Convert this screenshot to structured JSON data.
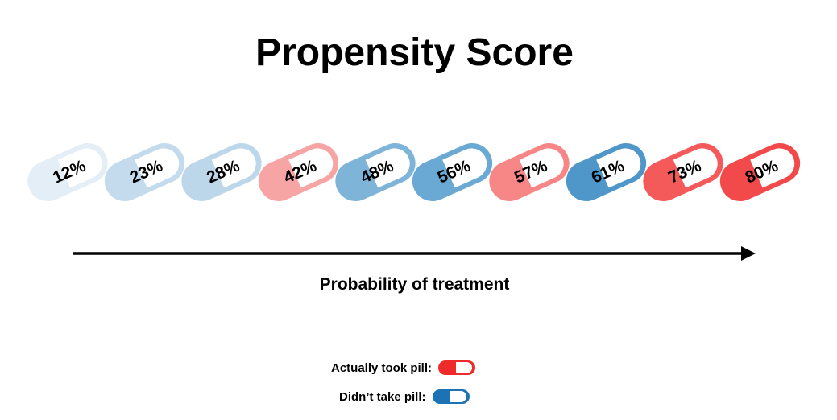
{
  "title": "Propensity Score",
  "axis_label": "Probability of treatment",
  "pills": [
    {
      "label": "12%",
      "color": "#e3eef6"
    },
    {
      "label": "23%",
      "color": "#c3dbec"
    },
    {
      "label": "28%",
      "color": "#bcd6ea"
    },
    {
      "label": "42%",
      "color": "#f7a4a4"
    },
    {
      "label": "48%",
      "color": "#7fb4d9"
    },
    {
      "label": "56%",
      "color": "#6aa9d4"
    },
    {
      "label": "57%",
      "color": "#f78686"
    },
    {
      "label": "61%",
      "color": "#4f97c8"
    },
    {
      "label": "73%",
      "color": "#f55a5a"
    },
    {
      "label": "80%",
      "color": "#f24a4a"
    }
  ],
  "legend": [
    {
      "label": "Actually took pill:",
      "color": "#ee2b2b"
    },
    {
      "label": "Didn’t take pill:",
      "color": "#1b72b4"
    }
  ]
}
